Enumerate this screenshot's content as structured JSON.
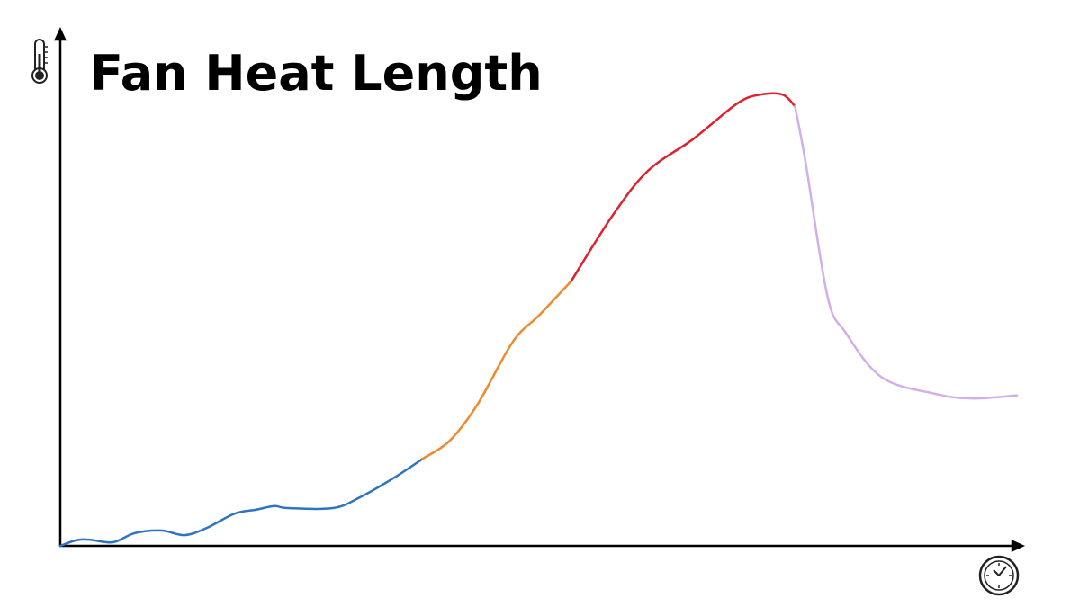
{
  "chart_data": {
    "type": "line",
    "title": "Fan Heat Length",
    "xlim": [
      0,
      100
    ],
    "ylim": [
      0,
      100
    ],
    "grid": false,
    "series": [
      {
        "color": "#2f74c0",
        "x": [
          0,
          1.7,
          3.1,
          5.5,
          7.8,
          10.6,
          13.0,
          15.3,
          18.2,
          20.5,
          22.4,
          23.8,
          28.5,
          31.3,
          35.1,
          37.9
        ],
        "values": [
          0,
          1.1,
          1.2,
          0.7,
          2.5,
          3.0,
          2.1,
          3.5,
          6.3,
          7.1,
          7.8,
          7.4,
          7.4,
          9.5,
          13.6,
          17.1
        ]
      },
      {
        "color": "#ee8a2e",
        "x": [
          37.9,
          40.7,
          43.6,
          47.3,
          50.1,
          53.4
        ],
        "values": [
          17.1,
          20.6,
          27.7,
          40.0,
          45.3,
          51.9
        ]
      },
      {
        "color": "#e0202a",
        "x": [
          53.4,
          57.7,
          61.4,
          66.1,
          70.8,
          73.2,
          75.5,
          76.8
        ],
        "values": [
          51.9,
          64.7,
          73.5,
          79.7,
          86.8,
          88.5,
          88.5,
          86.2
        ]
      },
      {
        "color": "#d2aeea",
        "x": [
          76.8,
          77.9,
          80.2,
          82.1,
          85.9,
          91.5,
          95.3,
          100
        ],
        "values": [
          86.2,
          75.3,
          48.9,
          41.8,
          33.0,
          29.8,
          28.9,
          29.5
        ]
      }
    ]
  }
}
